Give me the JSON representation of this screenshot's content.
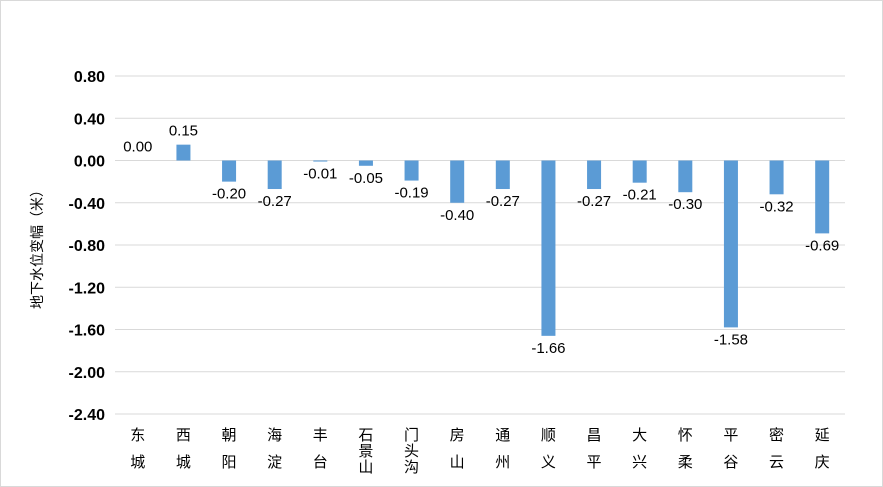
{
  "chart_data": {
    "type": "bar",
    "title": "",
    "xlabel": "",
    "ylabel": "地下水位变幅（米）",
    "categories": [
      "东城",
      "西城",
      "朝阳",
      "海淀",
      "丰台",
      "石景山",
      "门头沟",
      "房山",
      "通州",
      "顺义",
      "昌平",
      "大兴",
      "怀柔",
      "平谷",
      "密云",
      "延庆"
    ],
    "values": [
      0.0,
      0.15,
      -0.2,
      -0.27,
      -0.01,
      -0.05,
      -0.19,
      -0.4,
      -0.27,
      -1.66,
      -0.27,
      -0.21,
      -0.3,
      -1.58,
      -0.32,
      -0.69
    ],
    "data_labels": [
      "0.00",
      "0.15",
      "-0.20",
      "-0.27",
      "-0.01",
      "-0.05",
      "-0.19",
      "-0.40",
      "-0.27",
      "-1.66",
      "-0.27",
      "-0.21",
      "-0.30",
      "-1.58",
      "-0.32",
      "-0.69"
    ],
    "yticks": [
      "0.80",
      "0.40",
      "0.00",
      "-0.40",
      "-0.80",
      "-1.20",
      "-1.60",
      "-2.00",
      "-2.40"
    ],
    "ylim": [
      -2.4,
      0.8
    ],
    "grid": true,
    "legend": "none",
    "bar_color": "#5b9bd5"
  }
}
